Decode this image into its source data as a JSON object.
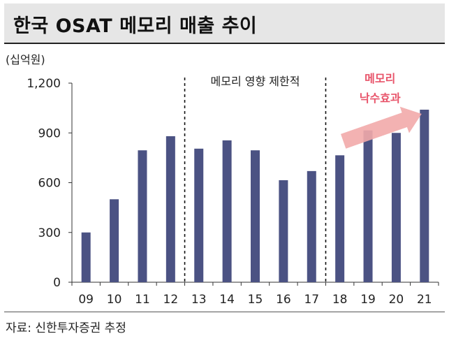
{
  "title": "한국 OSAT 메모리 매출 추이",
  "unit": "(십억원)",
  "source": "자료: 신한투자증권 추정",
  "colors": {
    "bar": "#4b5283",
    "arrow": "#f2aaaa",
    "emphasis": "#e8546a",
    "title_bg": "#e6e6e6"
  },
  "chart_data": {
    "type": "bar",
    "title": "한국 OSAT 메모리 매출 추이",
    "ylabel": "(십억원)",
    "xlabel": "",
    "categories": [
      "09",
      "10",
      "11",
      "12",
      "13",
      "14",
      "15",
      "16",
      "17",
      "18",
      "19",
      "20",
      "21"
    ],
    "values": [
      300,
      500,
      795,
      880,
      805,
      855,
      795,
      615,
      670,
      765,
      915,
      900,
      1040
    ],
    "ylim": [
      0,
      1200
    ],
    "yticks": [
      "0",
      "300",
      "600",
      "900",
      "1,200"
    ],
    "ytick_values": [
      0,
      300,
      600,
      900,
      1200
    ],
    "grid": false,
    "legend": "none",
    "annotations": {
      "regions": [
        {
          "label": "메모리 영향 제한적",
          "from": "13",
          "to": "17"
        }
      ],
      "dividers_after": [
        "12",
        "17"
      ],
      "trend_arrow": {
        "lines": [
          "메모리",
          "낙수효과"
        ],
        "from": "18",
        "to": "21"
      }
    }
  }
}
